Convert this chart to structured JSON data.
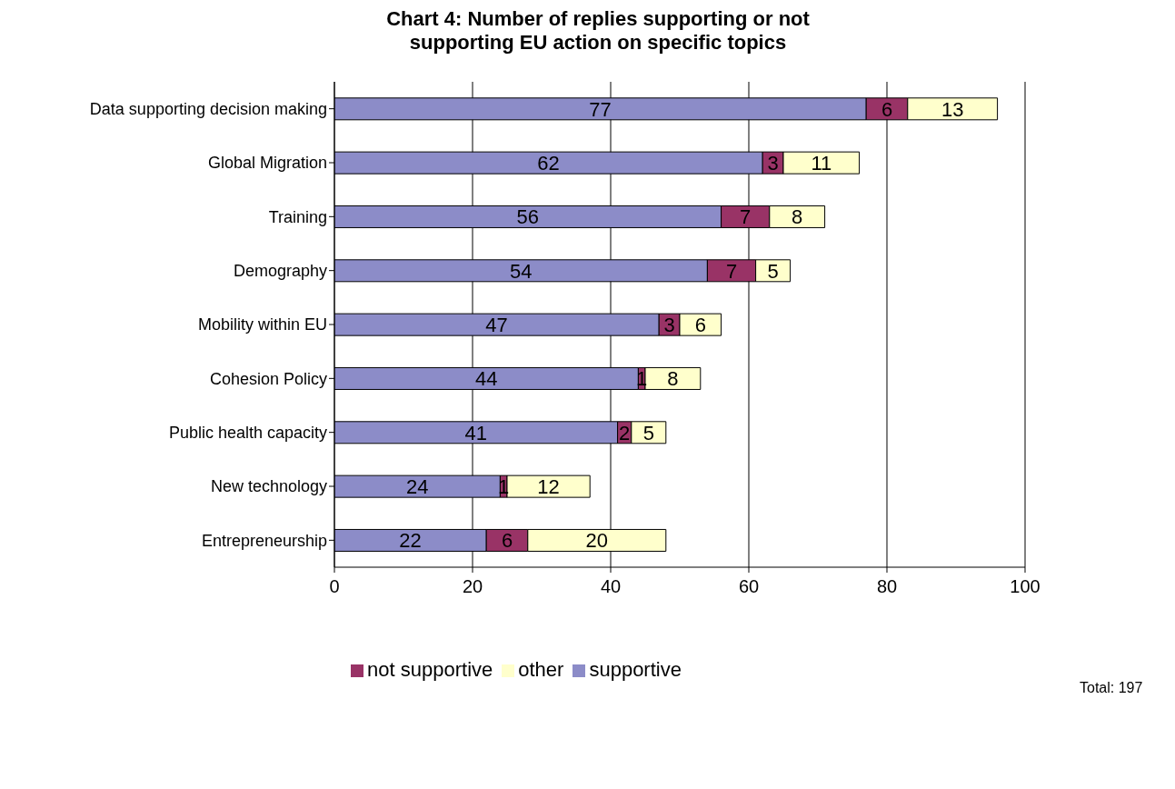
{
  "chart_data": {
    "type": "bar",
    "orientation": "horizontal",
    "stacked": true,
    "title": "Chart 4: Number of replies supporting or not supporting EU action on specific topics",
    "categories": [
      "Data supporting decision making",
      "Global Migration",
      "Training",
      "Demography",
      "Mobility within EU",
      "Cohesion Policy",
      "Public health capacity",
      "New technology",
      "Entrepreneurship"
    ],
    "series": [
      {
        "name": "supportive",
        "color": "#8c8cc8",
        "values": [
          77,
          62,
          56,
          54,
          47,
          44,
          41,
          24,
          22
        ]
      },
      {
        "name": "not supportive",
        "color": "#993366",
        "values": [
          6,
          3,
          7,
          7,
          3,
          1,
          2,
          1,
          6
        ]
      },
      {
        "name": "other",
        "color": "#ffffcc",
        "values": [
          13,
          11,
          8,
          5,
          6,
          8,
          5,
          12,
          20
        ]
      }
    ],
    "xlim": [
      0,
      100
    ],
    "xticks": [
      0,
      20,
      40,
      60,
      80,
      100
    ],
    "grid": "x",
    "legend": "bottom",
    "data_labels": true,
    "annotations": [
      "Total: 197"
    ]
  }
}
